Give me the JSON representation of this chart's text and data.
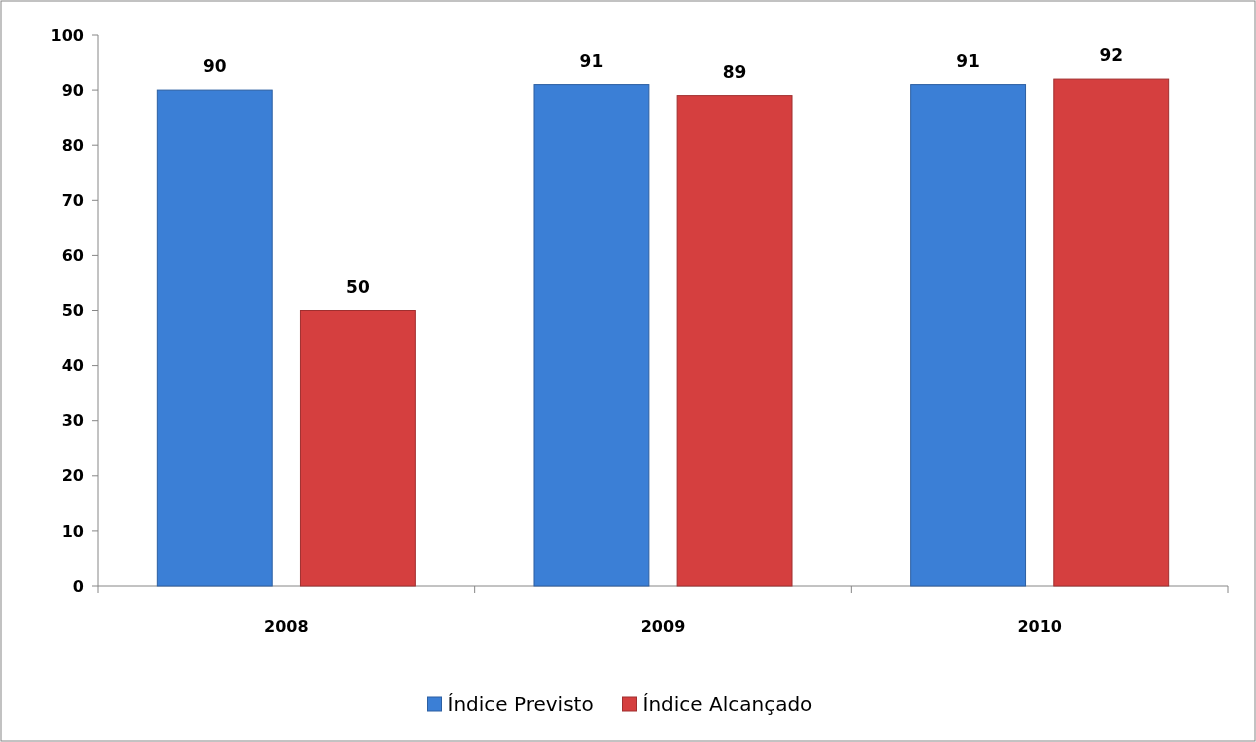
{
  "chart_data": {
    "type": "bar",
    "categories": [
      "2008",
      "2009",
      "2010"
    ],
    "series": [
      {
        "name": "Índice Previsto",
        "color": "#3b7fd6",
        "values": [
          90,
          91,
          91
        ]
      },
      {
        "name": "Índice Alcançado",
        "color": "#d53f3f",
        "values": [
          50,
          89,
          92
        ]
      }
    ],
    "ylim": [
      0,
      100
    ],
    "yticks": [
      0,
      10,
      20,
      30,
      40,
      50,
      60,
      70,
      80,
      90,
      100
    ],
    "grid": false,
    "legend": "bottom",
    "data_labels": true
  }
}
